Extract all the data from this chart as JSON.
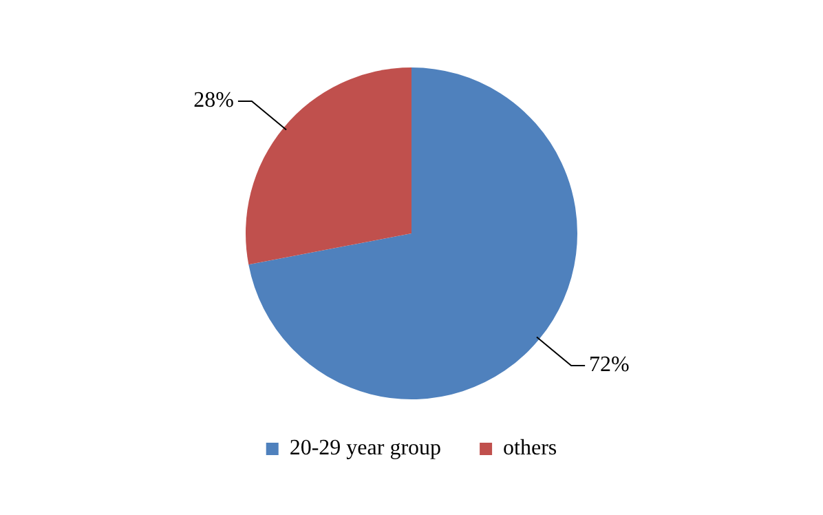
{
  "chart_data": {
    "type": "pie",
    "categories": [
      "20-29 year group",
      "others"
    ],
    "values": [
      72,
      28
    ],
    "colors": [
      "#4f81bd",
      "#c0504d"
    ],
    "value_labels": [
      "72%",
      "28%"
    ],
    "legend": "bottom"
  }
}
